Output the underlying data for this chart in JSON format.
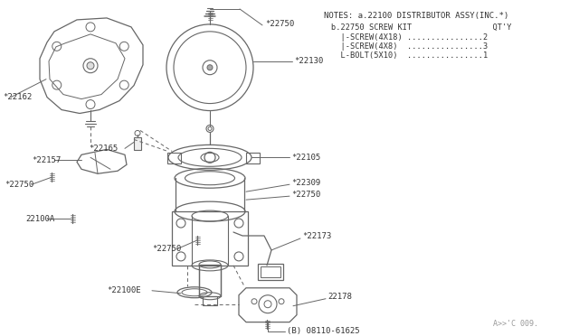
{
  "bg_color": "#ffffff",
  "line_color": "#666666",
  "text_color": "#333333",
  "fig_width": 6.4,
  "fig_height": 3.72,
  "dpi": 100,
  "notes_title": "NOTES: a.22100 DISTRIBUTOR ASSY(INC.*)",
  "notes_line2": "b.22750 SCREW KIT                 QT'Y",
  "notes_line3": "  |-SCREW(4X18) ................2",
  "notes_line4": "  |-SCREW(4X8)  ................3",
  "notes_line5": "  L-BOLT(5X10)  ................1",
  "part_code": "A>>'C 009.",
  "labels": {
    "22750_top": "*22750",
    "22130": "*22130",
    "22162": "*22162",
    "22165": "*22165",
    "22157": "*22157",
    "22750_left": "*22750",
    "22105": "*22105",
    "22309": "*22309",
    "22750_mid2": "*22750",
    "22173": "*22173",
    "22100A": "22100A",
    "22750_bot": "*22750",
    "22100E": "*22100E",
    "22178": "22178",
    "08110": "(B) 08110-61625"
  }
}
